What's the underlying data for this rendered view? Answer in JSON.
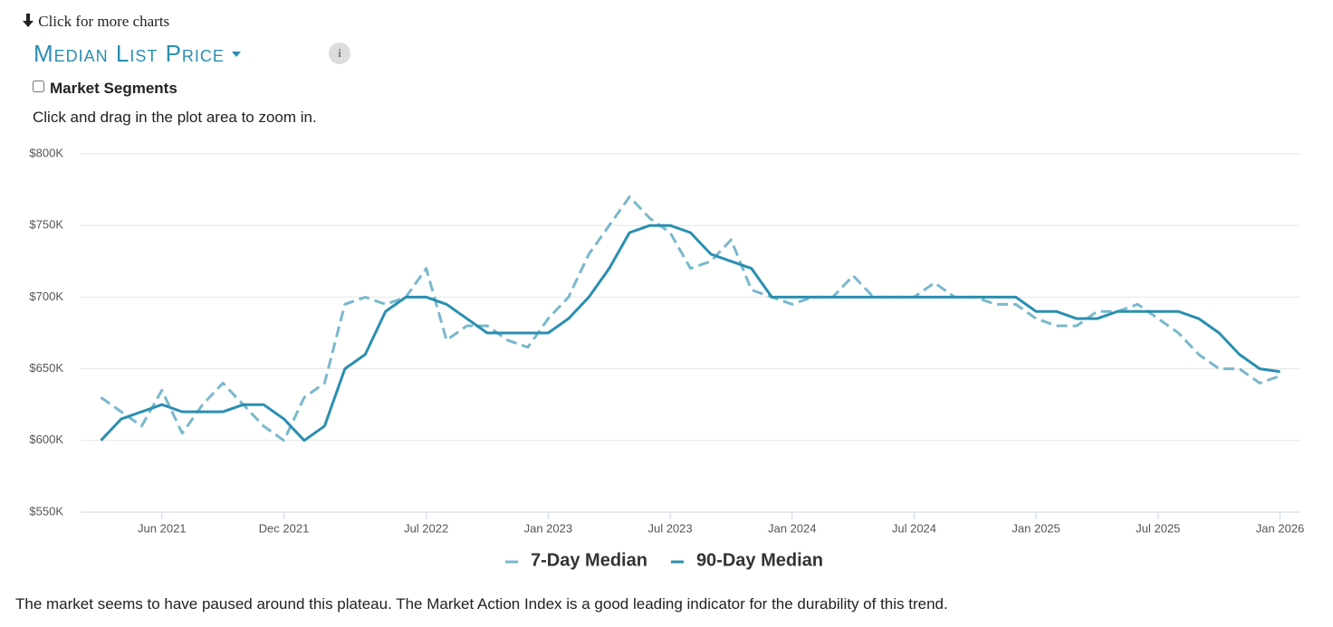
{
  "header": {
    "link": "Click for more charts",
    "title": "Median List Price",
    "info": "i",
    "checkbox_label": "Market Segments",
    "hint": "Click and drag in the plot area to zoom in."
  },
  "chart_data": {
    "type": "line",
    "x": [
      "2021-03",
      "2021-04",
      "2021-05",
      "2021-06",
      "2021-07",
      "2021-08",
      "2021-09",
      "2021-10",
      "2021-11",
      "2021-12",
      "2022-01",
      "2022-02",
      "2022-03",
      "2022-04",
      "2022-05",
      "2022-06",
      "2022-07",
      "2022-08",
      "2022-09",
      "2022-10",
      "2022-11",
      "2022-12",
      "2023-01",
      "2023-02",
      "2023-03",
      "2023-04",
      "2023-05",
      "2023-06",
      "2023-07",
      "2023-08",
      "2023-09",
      "2023-10",
      "2023-11",
      "2023-12",
      "2024-01",
      "2024-02",
      "2024-03",
      "2024-04",
      "2024-05",
      "2024-06",
      "2024-07",
      "2024-08",
      "2024-09",
      "2024-10",
      "2024-11",
      "2024-12",
      "2025-01",
      "2025-02",
      "2025-03",
      "2025-04",
      "2025-05",
      "2025-06",
      "2025-07",
      "2025-08",
      "2025-09",
      "2025-10",
      "2025-11",
      "2025-12",
      "2026-01"
    ],
    "series": [
      {
        "name": "7-Day Median",
        "color": "#7ab8cc",
        "dashed": true,
        "values": [
          630000,
          620000,
          610000,
          635000,
          605000,
          625000,
          640000,
          625000,
          610000,
          600000,
          630000,
          640000,
          695000,
          700000,
          695000,
          700000,
          720000,
          670000,
          680000,
          680000,
          670000,
          665000,
          685000,
          700000,
          730000,
          750000,
          770000,
          755000,
          745000,
          720000,
          725000,
          740000,
          705000,
          700000,
          695000,
          700000,
          700000,
          715000,
          700000,
          700000,
          700000,
          710000,
          700000,
          700000,
          695000,
          695000,
          685000,
          680000,
          680000,
          690000,
          690000,
          695000,
          685000,
          675000,
          660000,
          650000,
          650000,
          640000,
          645000
        ]
      },
      {
        "name": "90-Day Median",
        "color": "#2a8fb0",
        "dashed": false,
        "values": [
          600000,
          615000,
          620000,
          625000,
          620000,
          620000,
          620000,
          625000,
          625000,
          615000,
          600000,
          610000,
          650000,
          660000,
          690000,
          700000,
          700000,
          695000,
          685000,
          675000,
          675000,
          675000,
          675000,
          685000,
          700000,
          720000,
          745000,
          750000,
          750000,
          745000,
          730000,
          725000,
          720000,
          700000,
          700000,
          700000,
          700000,
          700000,
          700000,
          700000,
          700000,
          700000,
          700000,
          700000,
          700000,
          700000,
          690000,
          690000,
          685000,
          685000,
          690000,
          690000,
          690000,
          690000,
          685000,
          675000,
          660000,
          650000,
          648000
        ]
      }
    ],
    "xlim": [
      "2021-02",
      "2026-02"
    ],
    "xticks": [
      {
        "value": "2021-06",
        "label": "Jun 2021"
      },
      {
        "value": "2021-12",
        "label": "Dec 2021"
      },
      {
        "value": "2022-07",
        "label": "Jul 2022"
      },
      {
        "value": "2023-01",
        "label": "Jan 2023"
      },
      {
        "value": "2023-07",
        "label": "Jul 2023"
      },
      {
        "value": "2024-01",
        "label": "Jan 2024"
      },
      {
        "value": "2024-07",
        "label": "Jul 2024"
      },
      {
        "value": "2025-01",
        "label": "Jan 2025"
      },
      {
        "value": "2025-07",
        "label": "Jul 2025"
      },
      {
        "value": "2026-01",
        "label": "Jan 2026"
      }
    ],
    "ylim": [
      550000,
      800000
    ],
    "yticks": [
      {
        "value": 550000,
        "label": "$550K"
      },
      {
        "value": 600000,
        "label": "$600K"
      },
      {
        "value": 650000,
        "label": "$650K"
      },
      {
        "value": 700000,
        "label": "$700K"
      },
      {
        "value": 750000,
        "label": "$750K"
      },
      {
        "value": 800000,
        "label": "$800K"
      }
    ],
    "grid": true
  },
  "footer": "The market seems to have paused around this plateau. The Market Action Index is a good leading indicator for the durability of this trend."
}
